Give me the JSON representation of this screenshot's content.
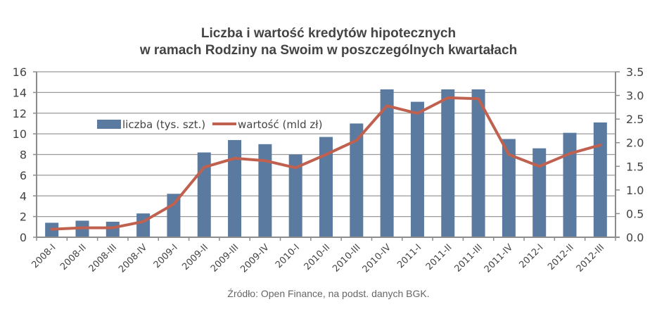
{
  "title": {
    "line1": "Liczba i wartość kredytów hipotecznych",
    "line2": "w ramach Rodziny na Swoim w poszczególnych kwartałach"
  },
  "source": "Źródło: Open Finance, na podst. danych BGK.",
  "legend": {
    "bar_label": "liczba (tys. szt.)",
    "line_label": "wartość (mld zł)"
  },
  "colors": {
    "bar": "#5b7aa0",
    "line": "#c0614f",
    "grid": "#999999",
    "axis": "#8c8c8c",
    "text": "#444444"
  },
  "chart_data": {
    "type": "bar+line",
    "title": "Liczba i wartość kredytów hipotecznych w ramach Rodziny na Swoim w poszczególnych kwartałach",
    "categories": [
      "2008-I",
      "2008-II",
      "2008-III",
      "2008-IV",
      "2009-I",
      "2009-II",
      "2009-III",
      "2009-IV",
      "2010-I",
      "2010-II",
      "2010-III",
      "2010-IV",
      "2011-I",
      "2011-II",
      "2011-III",
      "2011-IV",
      "2012-I",
      "2012-II",
      "2012-III"
    ],
    "series": [
      {
        "name": "liczba (tys. szt.)",
        "type": "bar",
        "axis": "left",
        "values": [
          1.4,
          1.6,
          1.5,
          2.3,
          4.2,
          8.2,
          9.4,
          9.0,
          8.0,
          9.7,
          11.0,
          14.3,
          13.1,
          14.3,
          14.3,
          9.5,
          8.6,
          10.1,
          11.1
        ]
      },
      {
        "name": "wartość (mld zł)",
        "type": "line",
        "axis": "right",
        "values": [
          0.17,
          0.2,
          0.2,
          0.33,
          0.7,
          1.48,
          1.67,
          1.62,
          1.47,
          1.75,
          2.05,
          2.78,
          2.62,
          2.95,
          2.93,
          1.75,
          1.5,
          1.77,
          1.95
        ]
      }
    ],
    "y_left": {
      "min": 0,
      "max": 16,
      "ticks": [
        0,
        2,
        4,
        6,
        8,
        10,
        12,
        14,
        16
      ]
    },
    "y_right": {
      "min": 0,
      "max": 3.5,
      "ticks": [
        "0.0",
        "0.5",
        "1.0",
        "1.5",
        "2.0",
        "2.5",
        "3.0",
        "3.5"
      ]
    },
    "xlabel": "",
    "ylabel": "",
    "grid": true,
    "legend_position": "inside-top-left"
  }
}
